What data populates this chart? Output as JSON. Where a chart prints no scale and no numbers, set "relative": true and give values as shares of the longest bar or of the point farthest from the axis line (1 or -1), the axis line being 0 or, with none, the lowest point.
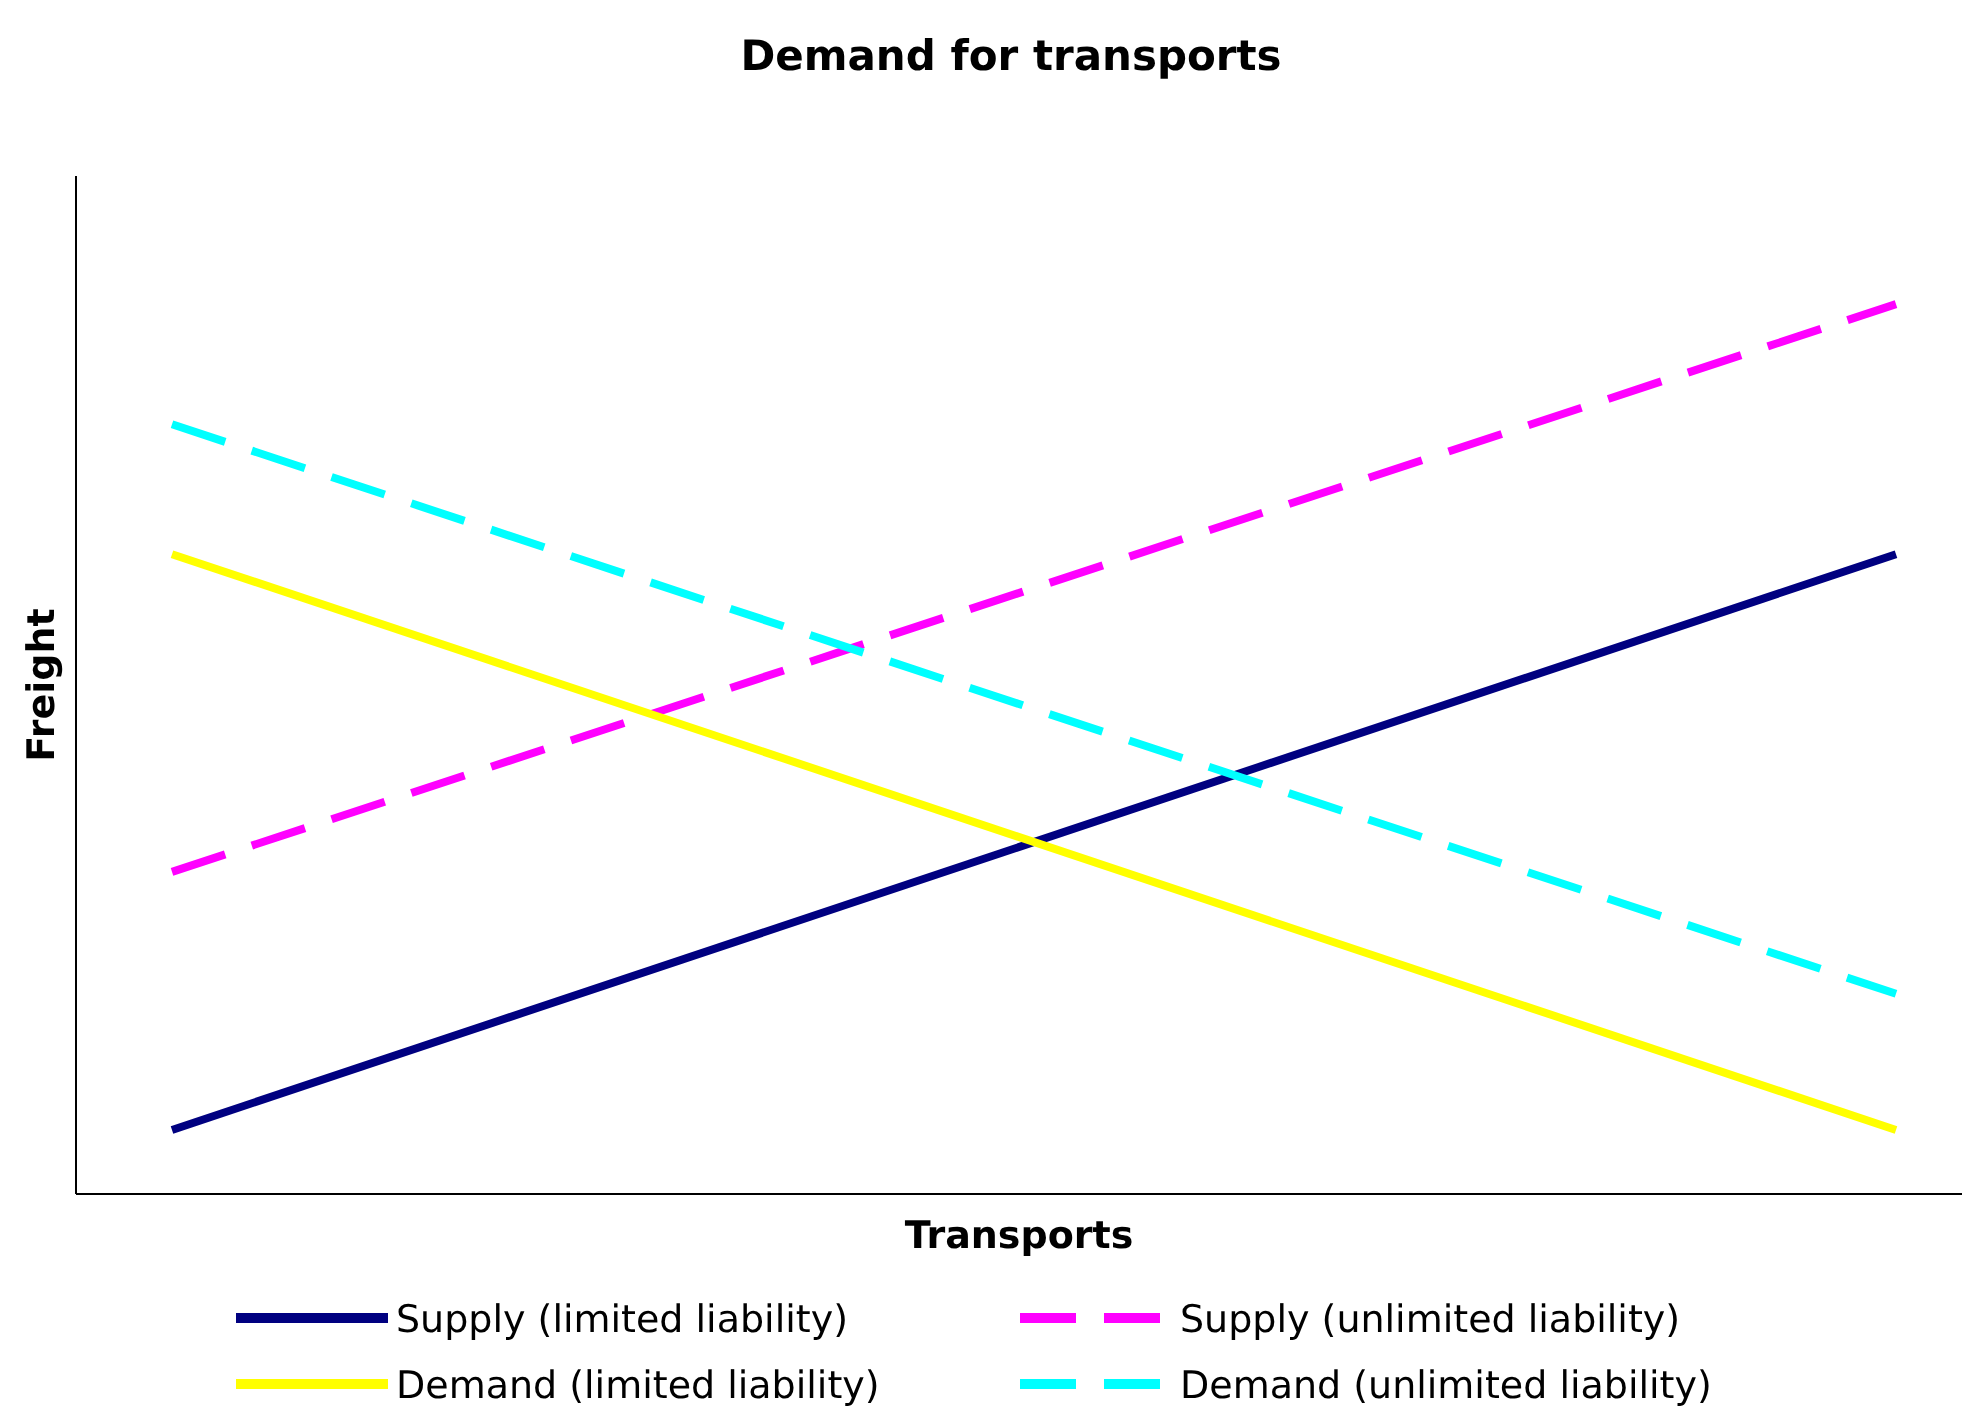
{
  "chart_data": {
    "type": "line",
    "title": "Demand for transports",
    "xlabel": "Transports",
    "ylabel": "Freight",
    "relative": true,
    "categories": [
      null,
      null
    ],
    "legend": "bottom",
    "series": [
      {
        "name": "Supply (limited liability)",
        "color": "#000080",
        "values": [
          0.072,
          0.719
        ],
        "line_style": "solid"
      },
      {
        "name": "Supply (unlimited liability)",
        "color": "#ff00ff",
        "values": [
          0.362,
          1
        ],
        "line_style": "dashed"
      },
      {
        "name": "Demand (limited liability)",
        "color": "#ffff00",
        "values": [
          0.719,
          0.072
        ],
        "line_style": "solid"
      },
      {
        "name": "Demand (unlimited liability)",
        "color": "#00ffff",
        "values": [
          0.865,
          0.225
        ],
        "line_style": "dashed"
      }
    ]
  }
}
